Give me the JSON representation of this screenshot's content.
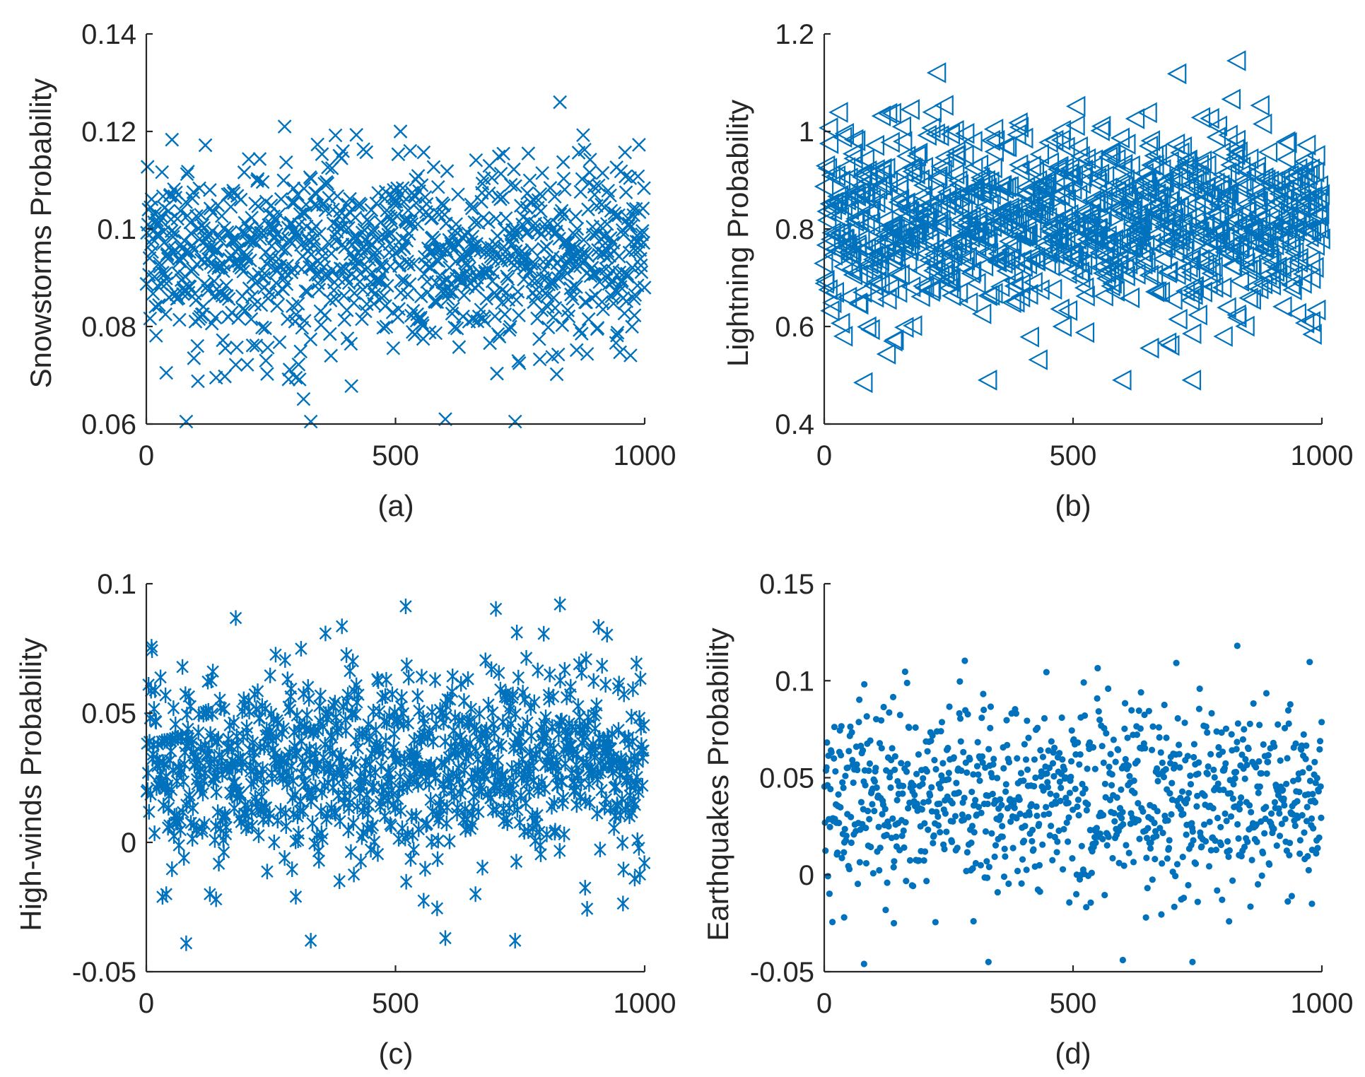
{
  "chart_data": [
    {
      "id": "a",
      "type": "scatter",
      "marker": "x",
      "caption": "(a)",
      "ylabel": "Snowstorms Probability",
      "xlabel": "",
      "xlim": [
        0,
        1000
      ],
      "ylim": [
        0.06,
        0.14
      ],
      "xticks": [
        0,
        500,
        1000
      ],
      "xtick_labels": [
        "0",
        "500",
        "1000"
      ],
      "yticks": [
        0.06,
        0.08,
        0.1,
        0.12,
        0.14
      ],
      "ytick_labels": [
        "0.06",
        "0.08",
        "0.1",
        "0.12",
        "0.14"
      ],
      "n_points": 1000,
      "distribution": {
        "mean": 0.095,
        "std": 0.0095
      },
      "highlight_points": {
        "x": [
          80,
          40,
          140,
          240,
          300,
          330,
          600,
          740,
          830,
          510
        ],
        "y": [
          0.0605,
          0.0705,
          0.0695,
          0.073,
          0.0695,
          0.0605,
          0.061,
          0.0605,
          0.126,
          0.12
        ]
      },
      "color": "#0072BD"
    },
    {
      "id": "b",
      "type": "scatter",
      "marker": "triangle-left",
      "caption": "(b)",
      "ylabel": "Lightning Probability",
      "xlabel": "",
      "xlim": [
        0,
        1000
      ],
      "ylim": [
        0.4,
        1.2
      ],
      "xticks": [
        0,
        500,
        1000
      ],
      "xtick_labels": [
        "0",
        "500",
        "1000"
      ],
      "yticks": [
        0.4,
        0.6,
        0.8,
        1,
        1.2
      ],
      "ytick_labels": [
        "0.4",
        "0.6",
        "0.8",
        "1",
        "1.2"
      ],
      "n_points": 1000,
      "distribution": {
        "mean": 0.82,
        "std": 0.095
      },
      "highlight_points": {
        "x": [
          80,
          330,
          600,
          740,
          830,
          40,
          140,
          480,
          980
        ],
        "y": [
          0.485,
          0.49,
          0.49,
          0.49,
          1.145,
          0.58,
          0.57,
          0.6,
          0.61
        ]
      },
      "color": "#0072BD"
    },
    {
      "id": "c",
      "type": "scatter",
      "marker": "asterisk",
      "caption": "(c)",
      "ylabel": "High-winds Probability",
      "xlabel": "",
      "xlim": [
        0,
        1000
      ],
      "ylim": [
        -0.05,
        0.1
      ],
      "xticks": [
        0,
        500,
        1000
      ],
      "xtick_labels": [
        "0",
        "500",
        "1000"
      ],
      "yticks": [
        -0.05,
        0,
        0.05,
        0.1
      ],
      "ytick_labels": [
        "-0.05",
        "0",
        "0.05",
        "0.1"
      ],
      "n_points": 1000,
      "distribution": {
        "mean": 0.03,
        "std": 0.019
      },
      "highlight_points": {
        "x": [
          80,
          330,
          600,
          740,
          830,
          40,
          140,
          300,
          980
        ],
        "y": [
          -0.039,
          -0.038,
          -0.037,
          -0.038,
          0.092,
          -0.02,
          -0.022,
          -0.021,
          -0.014
        ]
      },
      "color": "#0072BD"
    },
    {
      "id": "d",
      "type": "scatter",
      "marker": "dot",
      "caption": "(d)",
      "ylabel": "Earthquakes Probability",
      "xlabel": "",
      "xlim": [
        0,
        1000
      ],
      "ylim": [
        -0.05,
        0.15
      ],
      "xticks": [
        0,
        500,
        1000
      ],
      "xtick_labels": [
        "0",
        "500",
        "1000"
      ],
      "yticks": [
        -0.05,
        0,
        0.05,
        0.1,
        0.15
      ],
      "ytick_labels": [
        "-0.05",
        "0",
        "0.05",
        "0.1",
        "0.15"
      ],
      "n_points": 1000,
      "distribution": {
        "mean": 0.04,
        "std": 0.024
      },
      "highlight_points": {
        "x": [
          80,
          330,
          600,
          740,
          830,
          40,
          140,
          300,
          980
        ],
        "y": [
          -0.046,
          -0.045,
          -0.044,
          -0.045,
          0.118,
          -0.022,
          -0.025,
          -0.024,
          -0.015
        ]
      },
      "color": "#0072BD"
    }
  ]
}
